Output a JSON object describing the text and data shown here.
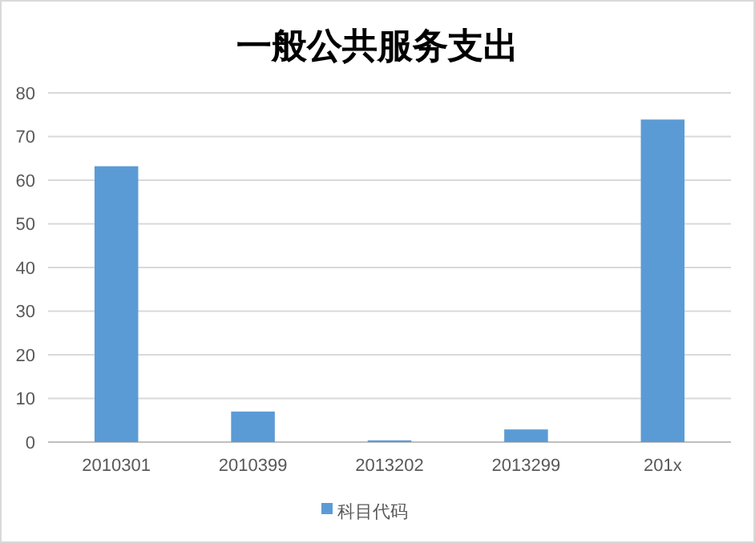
{
  "chart_data": {
    "type": "bar",
    "title": "一般公共服务支出",
    "categories": [
      "2010301",
      "2010399",
      "2013202",
      "2013299",
      "201x"
    ],
    "series": [
      {
        "name": "科目代码",
        "color": "#5b9bd5",
        "values": [
          63.2,
          7,
          0.4,
          2.9,
          73.9
        ]
      }
    ],
    "ylim": [
      0,
      80
    ],
    "yticks": [
      0,
      10,
      20,
      30,
      40,
      50,
      60,
      70,
      80
    ],
    "grid": "y",
    "legend": "bottom"
  }
}
